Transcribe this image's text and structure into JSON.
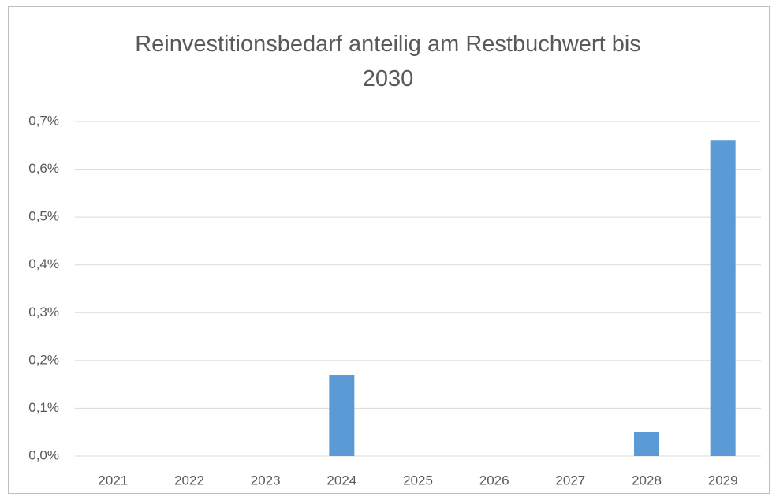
{
  "chart_data": {
    "type": "bar",
    "title": "Reinvestitionsbedarf anteilig am Restbuchwert bis 2030",
    "categories": [
      "2021",
      "2022",
      "2023",
      "2024",
      "2025",
      "2026",
      "2027",
      "2028",
      "2029"
    ],
    "values": [
      0,
      0,
      0,
      0.17,
      0,
      0,
      0,
      0.05,
      0.66
    ],
    "color": "#5b9bd5",
    "ylim": [
      0,
      0.7
    ],
    "yticks": [
      {
        "value": 0,
        "label": "0,0%"
      },
      {
        "value": 0.1,
        "label": "0,1%"
      },
      {
        "value": 0.2,
        "label": "0,2%"
      },
      {
        "value": 0.3,
        "label": "0,3%"
      },
      {
        "value": 0.4,
        "label": "0,4%"
      },
      {
        "value": 0.5,
        "label": "0,5%"
      },
      {
        "value": 0.6,
        "label": "0,6%"
      },
      {
        "value": 0.7,
        "label": "0,7%"
      }
    ],
    "grid": true
  }
}
